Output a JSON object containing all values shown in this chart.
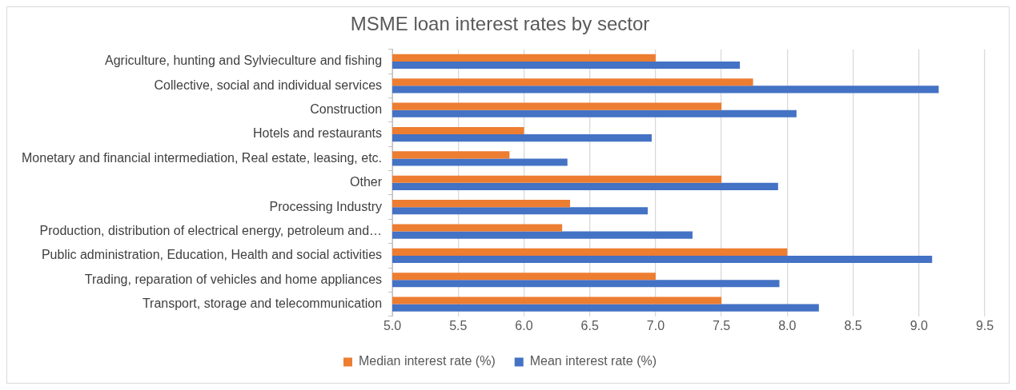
{
  "chart_data": {
    "type": "bar",
    "orientation": "horizontal",
    "title": "MSME loan interest rates by sector",
    "categories": [
      "Agriculture, hunting and Sylvieculture and fishing",
      "Collective, social and individual services",
      "Construction",
      "Hotels and restaurants",
      "Monetary and financial intermediation, Real estate, leasing, etc.",
      "Other",
      "Processing Industry",
      "Production, distribution of electrical energy, petroleum and…",
      "Public administration, Education, Health and social activities",
      "Trading, reparation of vehicles and home appliances",
      "Transport, storage and telecommunication"
    ],
    "series": [
      {
        "name": "Median interest rate (%)",
        "color": "#ed7d31",
        "values": [
          7.0,
          7.74,
          7.5,
          6.0,
          5.89,
          7.5,
          6.35,
          6.29,
          8.0,
          7.0,
          7.5
        ]
      },
      {
        "name": "Mean interest rate (%)",
        "color": "#4472c4",
        "values": [
          7.64,
          9.15,
          8.07,
          6.97,
          6.33,
          7.93,
          6.94,
          7.28,
          9.1,
          7.94,
          8.24
        ]
      }
    ],
    "xlim": [
      5.0,
      9.5
    ],
    "xticks": [
      {
        "value": 5,
        "label": "5.0"
      },
      {
        "value": 5.5,
        "label": "5.5"
      },
      {
        "value": 6,
        "label": "6.0"
      },
      {
        "value": 6.5,
        "label": "6.5"
      },
      {
        "value": 7,
        "label": "7.0"
      },
      {
        "value": 7.5,
        "label": "7.5"
      },
      {
        "value": 8,
        "label": "8.0"
      },
      {
        "value": 8.5,
        "label": "8.5"
      },
      {
        "value": 9,
        "label": "9.0"
      },
      {
        "value": 9.5,
        "label": "9.5"
      }
    ],
    "grid": "x",
    "legend": "bottom"
  }
}
